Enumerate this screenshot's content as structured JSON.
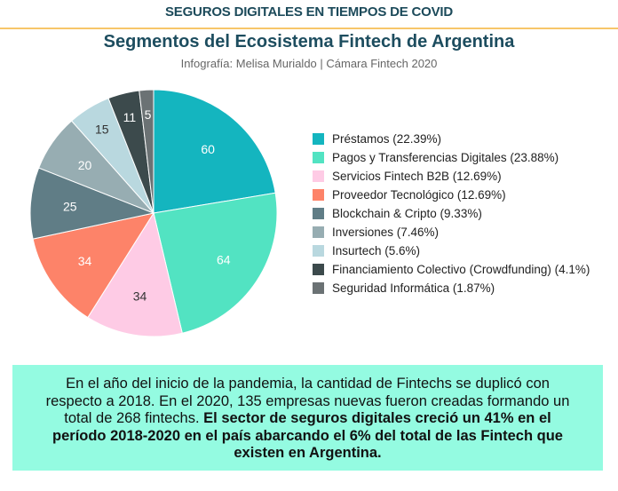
{
  "header": {
    "banner": "SEGUROS DIGITALES EN TIEMPOS DE COVID"
  },
  "chart_data": {
    "type": "pie",
    "title": "Segmentos del Ecosistema Fintech de Argentina",
    "subtitle": "Infografía: Melisa Murialdo | Cámara Fintech 2020",
    "legend_position": "right",
    "start": "top, clockwise",
    "slices": [
      {
        "label": "Préstamos (22.39%)",
        "value": 60,
        "color": "#14b5bf",
        "text_color": "#ffffff"
      },
      {
        "label": "Pagos y Transferencias Digitales (23.88%)",
        "value": 64,
        "color": "#52e3c2",
        "text_color": "#ffffff"
      },
      {
        "label": "Servicios Fintech B2B (12.69%)",
        "value": 34,
        "color": "#fecbe5",
        "text_color": "#333333"
      },
      {
        "label": "Proveedor Tecnológico (12.69%)",
        "value": 34,
        "color": "#fd8369",
        "text_color": "#ffffff"
      },
      {
        "label": "Blockchain & Cripto (9.33%)",
        "value": 25,
        "color": "#607d86",
        "text_color": "#ffffff"
      },
      {
        "label": "Inversiones (7.46%)",
        "value": 20,
        "color": "#97adb2",
        "text_color": "#ffffff"
      },
      {
        "label": "Insurtech (5.6%)",
        "value": 15,
        "color": "#b9d8df",
        "text_color": "#333333"
      },
      {
        "label": "Financiamiento Colectivo (Crowdfunding) (4.1%)",
        "value": 11,
        "color": "#3c4a4c",
        "text_color": "#ffffff"
      },
      {
        "label": "Seguridad Informática (1.87%)",
        "value": 5,
        "color": "#6b7274",
        "text_color": "#ffffff"
      }
    ]
  },
  "note": {
    "text": "En el año del inicio de la pandemia, la cantidad de Fintechs se duplicó con respecto a 2018. En el 2020, 135 empresas nuevas fueron creadas formando un total de 268 fintechs. ",
    "bold": "El sector de seguros digitales creció un 41% en el período 2018-2020 en el país abarcando el 6% del total de las Fintech que existen en Argentina.",
    "background": "#94fbe1"
  }
}
